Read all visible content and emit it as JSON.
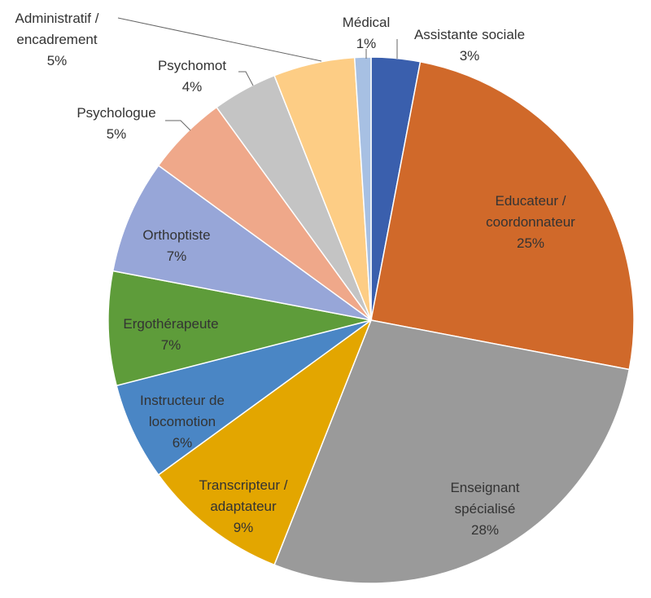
{
  "chart_data": {
    "type": "pie",
    "categories": [
      "Assistante sociale",
      "Educateur /\ncoordonnateur",
      "Enseignant\nspécialisé",
      "Transcripteur /\nadaptateur",
      "Instructeur de\nlocomotion",
      "Ergothérapeute",
      "Orthoptiste",
      "Psychologue",
      "Psychomot",
      "Administratif /\nencadrement",
      "Médical"
    ],
    "values": [
      3,
      25,
      28,
      9,
      6,
      7,
      7,
      5,
      4,
      5,
      1
    ],
    "value_labels": [
      "3%",
      "25%",
      "28%",
      "9%",
      "6%",
      "7%",
      "7%",
      "5%",
      "4%",
      "5%",
      "1%"
    ],
    "colors": [
      "#3a5fad",
      "#d0692a",
      "#9a9a9a",
      "#e3a600",
      "#4a86c5",
      "#5e9c3a",
      "#97a6d8",
      "#efa88a",
      "#c4c4c4",
      "#fdcd85",
      "#a7c0e3"
    ]
  }
}
